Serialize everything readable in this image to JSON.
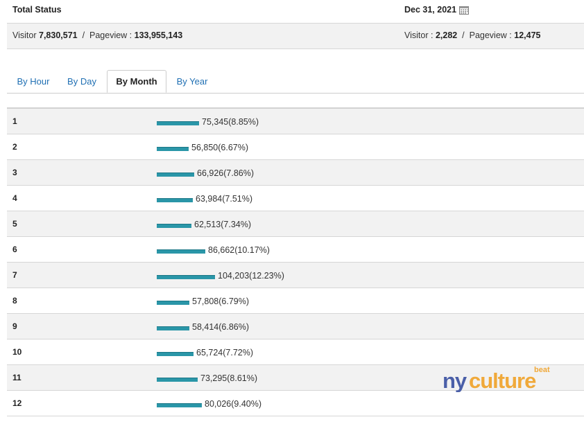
{
  "header": {
    "title": "Total Status",
    "date": "Dec 31, 2021",
    "date_icon": "calendar-icon"
  },
  "stats": {
    "total_visitor_label": "Visitor",
    "total_visitor": "7,830,571",
    "total_pageview_label": "Pageview :",
    "total_pageview": "133,955,143",
    "day_visitor_label": "Visitor :",
    "day_visitor": "2,282",
    "day_pageview_label": "Pageview :",
    "day_pageview": "12,475",
    "separator": "/"
  },
  "tabs": [
    {
      "label": "By Hour",
      "active": false
    },
    {
      "label": "By Day",
      "active": false
    },
    {
      "label": "By Month",
      "active": true
    },
    {
      "label": "By Year",
      "active": false
    }
  ],
  "rows": [
    {
      "label": "1",
      "value": 75345,
      "text": "75,345(8.85%)",
      "percent": 8.85
    },
    {
      "label": "2",
      "value": 56850,
      "text": "56,850(6.67%)",
      "percent": 6.67
    },
    {
      "label": "3",
      "value": 66926,
      "text": "66,926(7.86%)",
      "percent": 7.86
    },
    {
      "label": "4",
      "value": 63984,
      "text": "63,984(7.51%)",
      "percent": 7.51
    },
    {
      "label": "5",
      "value": 62513,
      "text": "62,513(7.34%)",
      "percent": 7.34
    },
    {
      "label": "6",
      "value": 86662,
      "text": "86,662(10.17%)",
      "percent": 10.17
    },
    {
      "label": "7",
      "value": 104203,
      "text": "104,203(12.23%)",
      "percent": 12.23
    },
    {
      "label": "8",
      "value": 57808,
      "text": "57,808(6.79%)",
      "percent": 6.79
    },
    {
      "label": "9",
      "value": 58414,
      "text": "58,414(6.86%)",
      "percent": 6.86
    },
    {
      "label": "10",
      "value": 65724,
      "text": "65,724(7.72%)",
      "percent": 7.72
    },
    {
      "label": "11",
      "value": 73295,
      "text": "73,295(8.61%)",
      "percent": 8.61
    },
    {
      "label": "12",
      "value": 80026,
      "text": "80,026(9.40%)",
      "percent": 9.4
    }
  ],
  "logo": {
    "text": "nyculture",
    "tag": "beat"
  },
  "colors": {
    "bar": "#2a96a8",
    "link": "#1f6fb3",
    "logo_blue": "#4a5fa8",
    "logo_orange": "#f0a93a"
  }
}
